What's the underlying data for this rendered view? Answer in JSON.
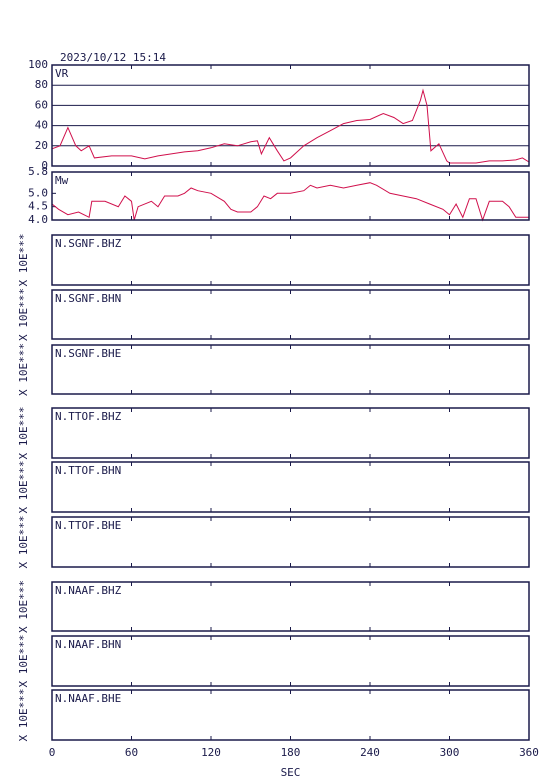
{
  "timestamp": "2023/10/12  15:14",
  "chart_data": [
    {
      "type": "line",
      "label": "VR",
      "color": "#d0104c",
      "grid": true,
      "ylim": [
        0,
        100
      ],
      "yticks": [
        0,
        20,
        40,
        60,
        80,
        100
      ],
      "x": [
        0,
        6,
        12,
        18,
        22,
        28,
        32,
        45,
        60,
        70,
        80,
        90,
        100,
        110,
        120,
        130,
        140,
        150,
        155,
        158,
        164,
        170,
        175,
        180,
        190,
        200,
        210,
        220,
        230,
        240,
        250,
        258,
        265,
        272,
        278,
        280,
        283,
        286,
        292,
        298,
        300,
        320,
        330,
        340,
        350,
        355,
        360
      ],
      "values": [
        17,
        20,
        38,
        20,
        15,
        20,
        8,
        10,
        10,
        7,
        10,
        12,
        14,
        15,
        18,
        22,
        20,
        24,
        25,
        12,
        28,
        15,
        5,
        8,
        20,
        28,
        35,
        42,
        45,
        46,
        52,
        48,
        42,
        45,
        65,
        75,
        60,
        15,
        22,
        5,
        3,
        3,
        5,
        5,
        6,
        8,
        4
      ]
    },
    {
      "type": "line",
      "label": "Mw",
      "color": "#d0104c",
      "grid": false,
      "ylim": [
        4.0,
        5.8
      ],
      "yticks": [
        {
          "value": 4.0,
          "label": "4.0"
        },
        4.5,
        {
          "value": 5.0,
          "label": "5.0"
        },
        5.8
      ],
      "x": [
        0,
        5,
        12,
        20,
        28,
        30,
        40,
        50,
        55,
        60,
        62,
        65,
        75,
        80,
        85,
        95,
        100,
        105,
        110,
        120,
        130,
        135,
        140,
        150,
        155,
        160,
        165,
        170,
        180,
        190,
        195,
        200,
        210,
        220,
        230,
        240,
        245,
        255,
        265,
        275,
        285,
        295,
        300,
        305,
        310,
        315,
        320,
        325,
        330,
        340,
        345,
        350,
        360
      ],
      "values": [
        4.6,
        4.4,
        4.2,
        4.3,
        4.1,
        4.7,
        4.7,
        4.5,
        4.9,
        4.7,
        4.0,
        4.5,
        4.7,
        4.5,
        4.9,
        4.9,
        5.0,
        5.2,
        5.1,
        5.0,
        4.7,
        4.4,
        4.3,
        4.3,
        4.5,
        4.9,
        4.8,
        5.0,
        5.0,
        5.1,
        5.3,
        5.2,
        5.3,
        5.2,
        5.3,
        5.4,
        5.3,
        5.0,
        4.9,
        4.8,
        4.6,
        4.4,
        4.2,
        4.6,
        4.1,
        4.8,
        4.8,
        4.0,
        4.7,
        4.7,
        4.5,
        4.1,
        4.1
      ]
    },
    {
      "type": "waveform",
      "title": "N.SGNF.BHZ",
      "ylabel": "X 10E***"
    },
    {
      "type": "waveform",
      "title": "N.SGNF.BHN",
      "ylabel": "X 10E***"
    },
    {
      "type": "waveform",
      "title": "N.SGNF.BHE",
      "ylabel": "X 10E***"
    },
    {
      "type": "waveform",
      "title": "N.TTOF.BHZ",
      "ylabel": "X 10E***"
    },
    {
      "type": "waveform",
      "title": "N.TTOF.BHN",
      "ylabel": "X 10E***"
    },
    {
      "type": "waveform",
      "title": "N.TTOF.BHE",
      "ylabel": "X 10E***"
    },
    {
      "type": "waveform",
      "title": "N.NAAF.BHZ",
      "ylabel": "X 10E***"
    },
    {
      "type": "waveform",
      "title": "N.NAAF.BHN",
      "ylabel": "X 10E***"
    },
    {
      "type": "waveform",
      "title": "N.NAAF.BHE",
      "ylabel": "X 10E***",
      "xlim": [
        0,
        360
      ],
      "xticks": [
        0,
        60,
        120,
        180,
        240,
        300,
        360
      ],
      "xlabel": "SEC"
    }
  ]
}
